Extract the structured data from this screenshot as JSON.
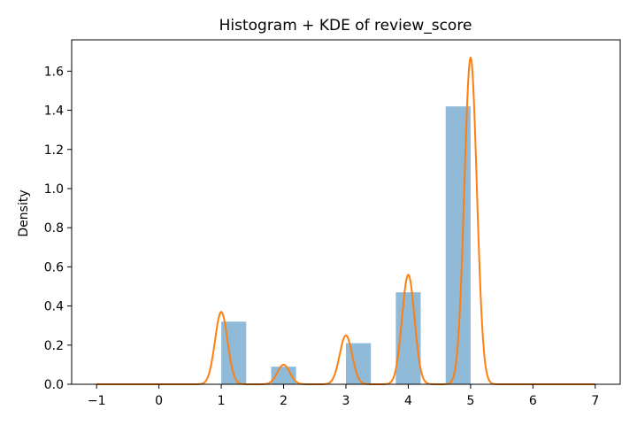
{
  "chart_data": {
    "type": "bar",
    "title": "Histogram + KDE of review_score",
    "xlabel": "",
    "ylabel": "Density",
    "xlim": [
      -1.4,
      7.4
    ],
    "ylim": [
      0,
      1.76
    ],
    "x_ticks": [
      -1,
      0,
      1,
      2,
      3,
      4,
      5,
      6,
      7
    ],
    "x_tick_labels": [
      "−1",
      "0",
      "1",
      "2",
      "3",
      "4",
      "5",
      "6",
      "7"
    ],
    "y_ticks": [
      0.0,
      0.2,
      0.4,
      0.6,
      0.8,
      1.0,
      1.2,
      1.4,
      1.6
    ],
    "y_tick_labels": [
      "0.0",
      "0.2",
      "0.4",
      "0.6",
      "0.8",
      "1.0",
      "1.2",
      "1.4",
      "1.6"
    ],
    "grid": false,
    "histogram": {
      "bin_width": 0.4,
      "bins": [
        {
          "x_start": 1.0,
          "x_end": 1.4,
          "density": 0.32
        },
        {
          "x_start": 1.8,
          "x_end": 2.2,
          "density": 0.09
        },
        {
          "x_start": 3.0,
          "x_end": 3.4,
          "density": 0.21
        },
        {
          "x_start": 3.8,
          "x_end": 4.2,
          "density": 0.47
        },
        {
          "x_start": 4.6,
          "x_end": 5.0,
          "density": 1.42
        }
      ],
      "color": "#1f77b4",
      "opacity": 0.5
    },
    "kde": {
      "color": "#ff7f0e",
      "x_range": [
        -1,
        7
      ],
      "peaks": [
        {
          "x": 1.0,
          "y": 0.37
        },
        {
          "x": 2.0,
          "y": 0.1
        },
        {
          "x": 3.0,
          "y": 0.25
        },
        {
          "x": 4.0,
          "y": 0.56
        },
        {
          "x": 5.0,
          "y": 1.67
        }
      ],
      "bandwidth": 0.1
    }
  }
}
